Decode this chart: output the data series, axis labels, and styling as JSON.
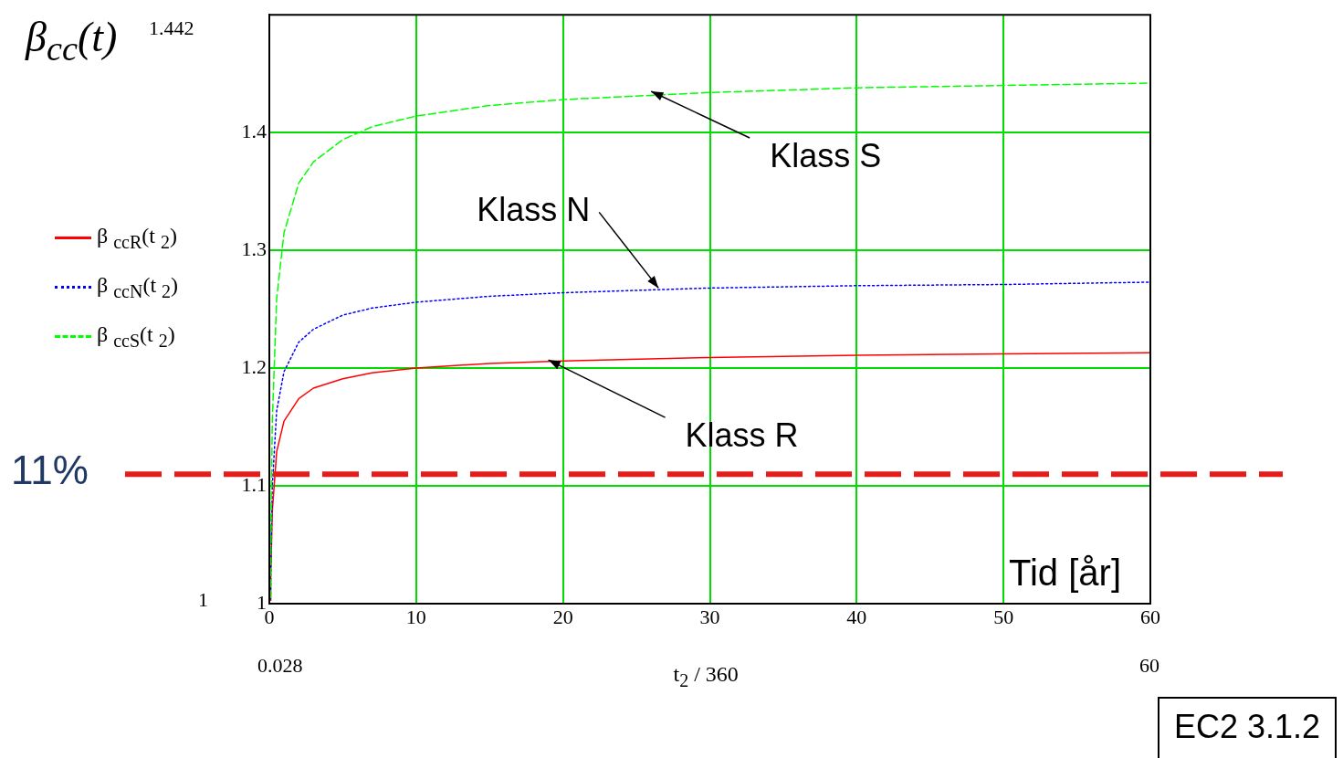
{
  "chart_data": {
    "type": "line",
    "ylabel": "β$_{cc}$(t)",
    "xlabel": "t$_{2}$ / 360",
    "xlim": [
      0,
      60
    ],
    "xticks": [
      0,
      10,
      20,
      30,
      40,
      50,
      60
    ],
    "ylim": [
      1,
      1.5
    ],
    "yticks": [
      1,
      1.1,
      1.2,
      1.3,
      1.4
    ],
    "grid": true,
    "legend": "left",
    "marker": "none",
    "series": [
      {
        "name": "β $_{ccR}$(t $_{2}$)",
        "color": "#ff0000",
        "line_style": "solid",
        "x": [
          0.08,
          0.1,
          0.2,
          0.5,
          1,
          2,
          3,
          5,
          7,
          10,
          15,
          20,
          30,
          40,
          50,
          60
        ],
        "values": [
          1.003,
          1.024,
          1.078,
          1.129,
          1.155,
          1.174,
          1.183,
          1.191,
          1.196,
          1.2,
          1.204,
          1.206,
          1.209,
          1.211,
          1.212,
          1.213
        ]
      },
      {
        "name": "β $_{ccN}$(t $_{2}$)",
        "color": "#0000ff",
        "line_style": "dotted",
        "x": [
          0.08,
          0.1,
          0.2,
          0.5,
          1,
          2,
          3,
          5,
          7,
          10,
          15,
          20,
          30,
          40,
          50,
          60
        ],
        "values": [
          1.004,
          1.03,
          1.099,
          1.164,
          1.197,
          1.222,
          1.233,
          1.245,
          1.251,
          1.256,
          1.261,
          1.264,
          1.268,
          1.27,
          1.271,
          1.273
        ]
      },
      {
        "name": "β $_{ccS}$(t $_{2}$)",
        "color": "#00ff00",
        "line_style": "dashed",
        "x": [
          0.08,
          0.1,
          0.2,
          0.5,
          1,
          2,
          3,
          5,
          7,
          10,
          15,
          20,
          30,
          40,
          50,
          60
        ],
        "values": [
          1.005,
          1.046,
          1.154,
          1.259,
          1.315,
          1.357,
          1.375,
          1.394,
          1.405,
          1.414,
          1.423,
          1.428,
          1.434,
          1.438,
          1.44,
          1.442
        ]
      }
    ],
    "ref_lines": [
      {
        "axis": "y",
        "value": 1.11,
        "color": "#e31c1c",
        "line_style": "dashed"
      }
    ],
    "annotations": [
      {
        "text": "Klass S",
        "x": 26,
        "y": 1.435
      },
      {
        "text": "Klass N",
        "x": 26.5,
        "y": 1.268
      },
      {
        "text": "Klass R",
        "x": 19,
        "y": 1.207
      },
      "Tid [år]",
      "1.442",
      "1",
      "0.028",
      "60",
      "EC2 3.1.2",
      "11%"
    ]
  }
}
